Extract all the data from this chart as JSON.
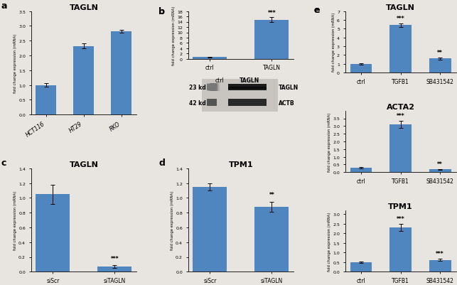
{
  "panel_a": {
    "title": "TAGLN",
    "categories": [
      "HCT116",
      "HT29",
      "RKO"
    ],
    "values": [
      1.0,
      2.32,
      2.82
    ],
    "errors": [
      0.07,
      0.08,
      0.05
    ],
    "ylabel": "fold change expression (mRNA)",
    "ylim": [
      0,
      3.5
    ],
    "yticks": [
      0,
      0.5,
      1.0,
      1.5,
      2.0,
      2.5,
      3.0,
      3.5
    ],
    "label": "a"
  },
  "panel_b_bar": {
    "categories": [
      "ctrl",
      "TAGLN"
    ],
    "values": [
      0.75,
      14.8
    ],
    "errors": [
      0.15,
      0.9
    ],
    "sig": [
      "",
      "***"
    ],
    "ylabel": "fold change expression (mRNA)",
    "ylim": [
      0,
      18
    ],
    "yticks": [
      0,
      2,
      4,
      6,
      8,
      10,
      12,
      14,
      16,
      18
    ],
    "label": "b"
  },
  "panel_c": {
    "title": "TAGLN",
    "categories": [
      "siScr",
      "siTAGLN"
    ],
    "values": [
      1.05,
      0.07
    ],
    "errors": [
      0.13,
      0.02
    ],
    "sig": [
      "",
      "***"
    ],
    "ylabel": "fold change expression (mRNA)",
    "ylim": [
      0,
      1.4
    ],
    "yticks": [
      0,
      0.2,
      0.4,
      0.6,
      0.8,
      1.0,
      1.2,
      1.4
    ],
    "label": "c"
  },
  "panel_d": {
    "title": "TPM1",
    "categories": [
      "siScr",
      "siTAGLN"
    ],
    "values": [
      1.15,
      0.88
    ],
    "errors": [
      0.05,
      0.07
    ],
    "sig": [
      "",
      "**"
    ],
    "ylabel": "fold change expression (mRNA)",
    "ylim": [
      0,
      1.4
    ],
    "yticks": [
      0,
      0.2,
      0.4,
      0.6,
      0.8,
      1.0,
      1.2,
      1.4
    ],
    "label": "d"
  },
  "panel_e1": {
    "title": "TAGLN",
    "categories": [
      "ctrl",
      "TGFB1",
      "SB431542"
    ],
    "values": [
      1.0,
      5.4,
      1.6
    ],
    "errors": [
      0.07,
      0.22,
      0.12
    ],
    "sig": [
      "",
      "***",
      "**"
    ],
    "ylabel": "fold change expression (mRNA)",
    "ylim": [
      0,
      7
    ],
    "yticks": [
      0,
      1,
      2,
      3,
      4,
      5,
      6,
      7
    ],
    "label": "e"
  },
  "panel_e2": {
    "title": "ACTA2",
    "categories": [
      "ctrl",
      "TGFB1",
      "SB431542"
    ],
    "values": [
      0.28,
      3.1,
      0.18
    ],
    "errors": [
      0.05,
      0.22,
      0.02
    ],
    "sig": [
      "",
      "***",
      "**"
    ],
    "ylabel": "fold change expression (mRNA)",
    "ylim": [
      0,
      4.0
    ],
    "yticks": [
      0,
      0.5,
      1.0,
      1.5,
      2.0,
      2.5,
      3.0,
      3.5
    ],
    "label": ""
  },
  "panel_e3": {
    "title": "TPM1",
    "categories": [
      "ctrl",
      "TGFB1",
      "SB431542"
    ],
    "values": [
      0.5,
      2.3,
      0.62
    ],
    "errors": [
      0.04,
      0.18,
      0.07
    ],
    "sig": [
      "",
      "***",
      "***"
    ],
    "ylabel": "fold change expression (mRNA)",
    "ylim": [
      0,
      3.2
    ],
    "yticks": [
      0,
      0.5,
      1.0,
      1.5,
      2.0,
      2.5,
      3.0
    ],
    "label": ""
  },
  "bar_color": "#4F86C0",
  "background_color": "#e8e4e0",
  "text_color": "#111111",
  "wb_header": "ctrl  TAGLN",
  "wb_kd_labels": [
    "23 kd",
    "42 kd"
  ],
  "wb_protein_labels": [
    "TAGLN",
    "ACTB"
  ],
  "wb_ctrl_colors": [
    "#909090",
    "#606060"
  ],
  "wb_tagln_colors": [
    "#1a1a1a",
    "#383838"
  ]
}
